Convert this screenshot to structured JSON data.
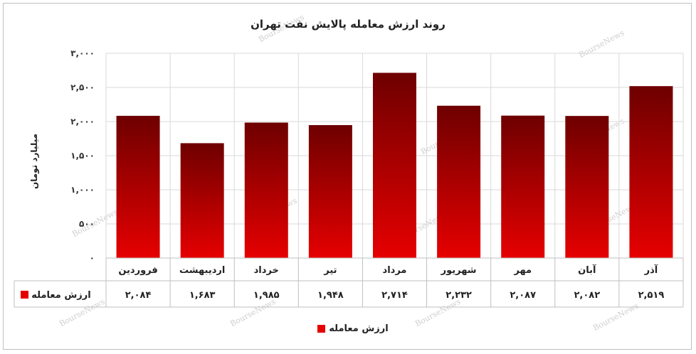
{
  "chart_data": {
    "type": "bar",
    "title": "روند ارزش معامله پالایش نفت تهران",
    "ylabel": "میلیارد تومان",
    "ylim": [
      0,
      3000
    ],
    "yticks": [
      "۰",
      "۵۰۰",
      "۱,۰۰۰",
      "۱,۵۰۰",
      "۲,۰۰۰",
      "۲,۵۰۰",
      "۳,۰۰۰"
    ],
    "ytick_values": [
      0,
      500,
      1000,
      1500,
      2000,
      2500,
      3000
    ],
    "categories": [
      "فروردین",
      "اردیبهشت",
      "خرداد",
      "تیر",
      "مرداد",
      "شهریور",
      "مهر",
      "آبان",
      "آذر"
    ],
    "series": [
      {
        "name": "ارزش معامله",
        "values": [
          2084,
          1683,
          1985,
          1948,
          2714,
          2232,
          2087,
          2082,
          2519
        ],
        "labels": [
          "۲,۰۸۴",
          "۱,۶۸۳",
          "۱,۹۸۵",
          "۱,۹۴۸",
          "۲,۷۱۴",
          "۲,۲۳۲",
          "۲,۰۸۷",
          "۲,۰۸۲",
          "۲,۵۱۹"
        ]
      }
    ],
    "grid": true,
    "legend": "bottom-center",
    "data_table": true,
    "colors": {
      "bar_top": "#6e0000",
      "bar_bottom": "#e60000",
      "grid": "#d9d9d9"
    },
    "watermark": "BourseNews"
  }
}
